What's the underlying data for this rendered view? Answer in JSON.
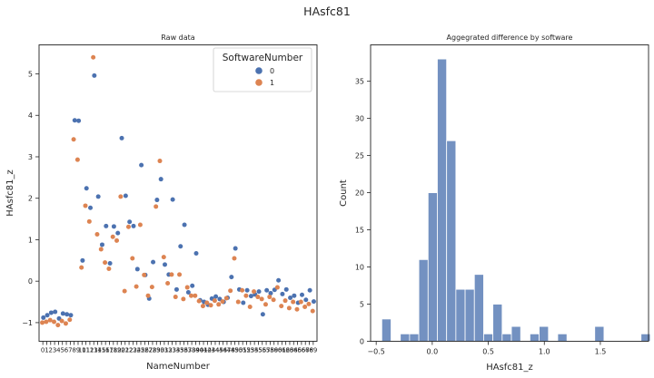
{
  "figure_title": "HAsfc81",
  "chart_data": [
    {
      "type": "scatter",
      "title": "Raw data",
      "xlabel": "NameNumber",
      "ylabel": "HAsfc81_z",
      "ylim": [
        -1.45,
        5.7
      ],
      "yticks": [
        -1,
        0,
        1,
        2,
        3,
        4,
        5
      ],
      "x_category_count": 70,
      "legend": {
        "title": "SoftwareNumber",
        "placement": "top-right",
        "entries": [
          "0",
          "1"
        ]
      },
      "colors": [
        "#4c72b0",
        "#dd8452"
      ],
      "series": [
        {
          "name": "0",
          "values": [
            -0.88,
            -0.82,
            -0.76,
            -0.74,
            -0.9,
            -0.78,
            -0.8,
            -0.82,
            3.88,
            3.87,
            0.5,
            2.24,
            1.77,
            4.96,
            2.04,
            0.88,
            1.33,
            0.43,
            1.32,
            1.16,
            3.45,
            2.06,
            1.43,
            1.33,
            0.29,
            2.8,
            0.15,
            -0.42,
            0.46,
            1.96,
            2.46,
            0.4,
            0.16,
            1.97,
            -0.2,
            0.84,
            1.36,
            -0.27,
            -0.11,
            0.67,
            -0.46,
            -0.5,
            -0.57,
            -0.42,
            -0.37,
            -0.43,
            -0.5,
            -0.4,
            0.1,
            0.79,
            -0.2,
            -0.52,
            -0.22,
            -0.36,
            -0.32,
            -0.25,
            -0.8,
            -0.22,
            -0.29,
            -0.21,
            0.02,
            -0.31,
            -0.2,
            -0.4,
            -0.35,
            -0.52,
            -0.33,
            -0.45,
            -0.22,
            -0.49
          ]
        },
        {
          "name": "1",
          "values": [
            -1.0,
            -0.98,
            -0.94,
            -0.98,
            -1.06,
            -0.96,
            -1.02,
            -0.93,
            3.42,
            2.93,
            0.33,
            1.82,
            1.44,
            5.4,
            1.13,
            0.77,
            0.45,
            0.3,
            1.07,
            0.98,
            2.04,
            -0.24,
            1.31,
            0.55,
            -0.13,
            1.36,
            0.15,
            -0.35,
            -0.14,
            1.8,
            2.9,
            0.58,
            -0.05,
            0.16,
            -0.38,
            0.16,
            -0.43,
            -0.15,
            -0.35,
            -0.35,
            -0.48,
            -0.6,
            -0.52,
            -0.58,
            -0.47,
            -0.56,
            -0.49,
            -0.41,
            -0.23,
            0.55,
            -0.5,
            -0.22,
            -0.35,
            -0.62,
            -0.25,
            -0.38,
            -0.43,
            -0.56,
            -0.38,
            -0.45,
            -0.15,
            -0.6,
            -0.47,
            -0.65,
            -0.5,
            -0.68,
            -0.5,
            -0.62,
            -0.55,
            -0.72
          ]
        }
      ]
    },
    {
      "type": "bar",
      "title": "Aggegrated difference by software",
      "xlabel": "HAsfc81_z",
      "ylabel": "Count",
      "xlim": [
        -0.55,
        1.93
      ],
      "ylim": [
        0,
        39.9
      ],
      "xticks": [
        -0.5,
        0.0,
        0.5,
        1.0,
        1.5
      ],
      "yticks": [
        0,
        5,
        10,
        15,
        20,
        25,
        30,
        35
      ],
      "bin_width": 0.0826,
      "bin_start": -0.45,
      "values": [
        3,
        0,
        1,
        1,
        11,
        20,
        38,
        27,
        7,
        7,
        9,
        1,
        5,
        1,
        2,
        0,
        1,
        2,
        0,
        1,
        0,
        0,
        0,
        2,
        0,
        0,
        0,
        0,
        1
      ],
      "color": "#4c72b0"
    }
  ]
}
